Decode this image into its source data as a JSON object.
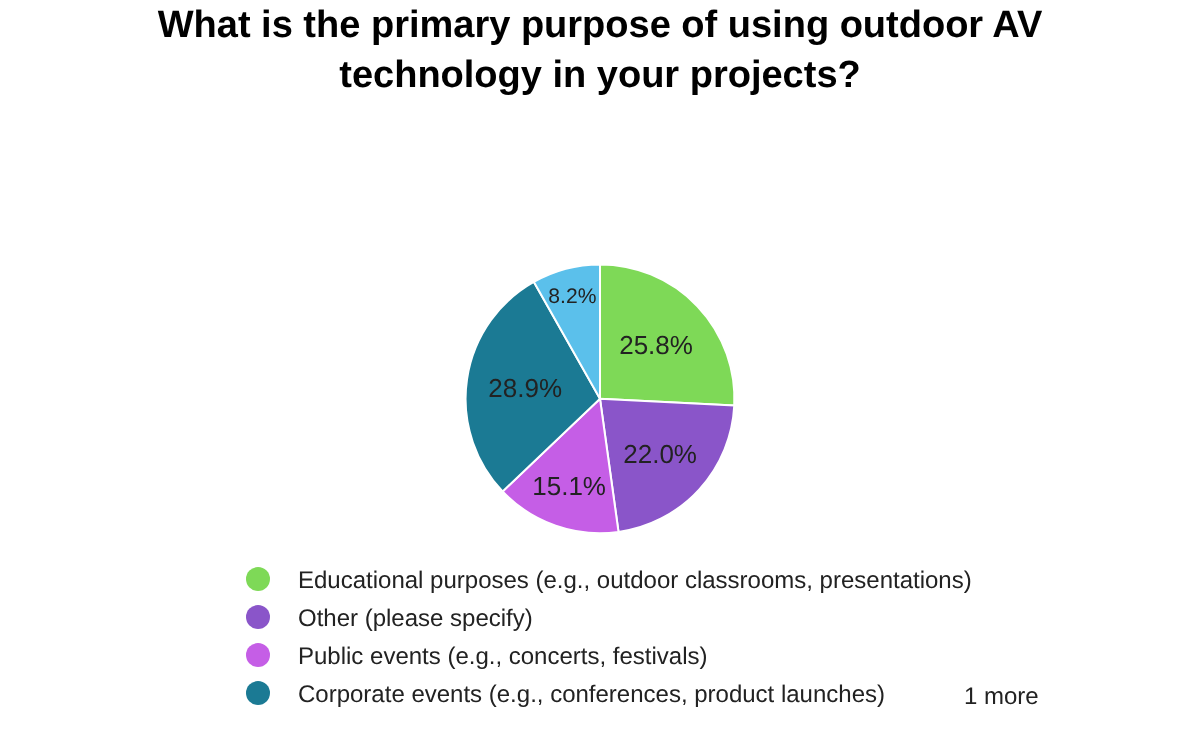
{
  "chart_data": {
    "type": "pie",
    "title": "What is the primary purpose of using outdoor AV technology in your projects?",
    "categories": [
      "Educational purposes (e.g., outdoor classrooms, presentations)",
      "Other (please specify)",
      "Public events (e.g., concerts, festivals)",
      "Corporate events (e.g., conferences, product launches)",
      null
    ],
    "values": [
      25.8,
      22.0,
      15.1,
      28.9,
      8.2
    ],
    "value_labels": [
      "25.8%",
      "22.0%",
      "15.1%",
      "28.9%",
      "8.2%"
    ],
    "colors": [
      "#7ed957",
      "#8a55c9",
      "#c55ee6",
      "#1b7a94",
      "#5bc0eb"
    ],
    "legend": "bottom",
    "annotations": [
      "1 more"
    ]
  }
}
